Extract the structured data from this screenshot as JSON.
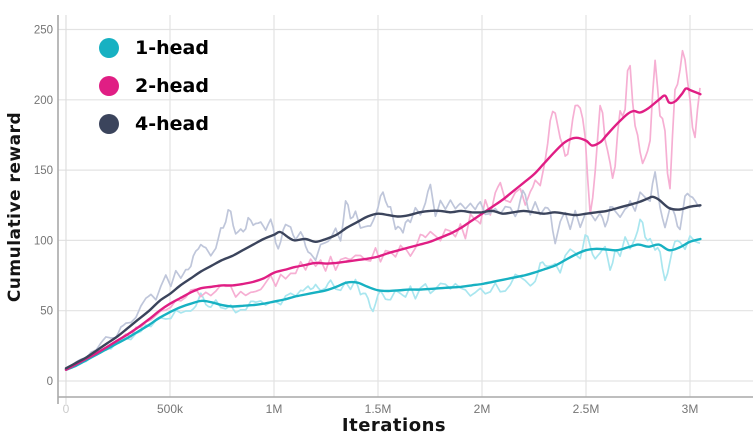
{
  "chart_data": {
    "type": "line",
    "title": "",
    "xlabel": "Iterations",
    "ylabel": "Cumulative reward",
    "grid": true,
    "legend_position": "top-left",
    "x_axis": {
      "unit": "iterations",
      "range_M": [
        0,
        3.3
      ],
      "ticks": [
        {
          "label": "0",
          "m": 0
        },
        {
          "label": "500k",
          "m": 0.5
        },
        {
          "label": "1M",
          "m": 1
        },
        {
          "label": "1.5M",
          "m": 1.5
        },
        {
          "label": "2M",
          "m": 2
        },
        {
          "label": "2.5M",
          "m": 2.5
        },
        {
          "label": "3M",
          "m": 3
        }
      ]
    },
    "y_axis": {
      "range": [
        -11,
        260
      ],
      "ticks": [
        {
          "label": "0",
          "v": 0
        },
        {
          "label": "50",
          "v": 50
        },
        {
          "label": "100",
          "v": 100
        },
        {
          "label": "150",
          "v": 150
        },
        {
          "label": "200",
          "v": 200
        },
        {
          "label": "250",
          "v": 250
        }
      ]
    },
    "series": [
      {
        "name": "1-head",
        "color": "#17b1c2",
        "raw_color": "#a9e6ef",
        "smoothed": [
          [
            0,
            8
          ],
          [
            0.05,
            11
          ],
          [
            0.1,
            15
          ],
          [
            0.15,
            19
          ],
          [
            0.2,
            23
          ],
          [
            0.25,
            27
          ],
          [
            0.3,
            31
          ],
          [
            0.35,
            35.5
          ],
          [
            0.4,
            40
          ],
          [
            0.45,
            45
          ],
          [
            0.5,
            49
          ],
          [
            0.55,
            52.5
          ],
          [
            0.6,
            55
          ],
          [
            0.65,
            57
          ],
          [
            0.7,
            56
          ],
          [
            0.75,
            54
          ],
          [
            0.8,
            53
          ],
          [
            0.85,
            53.5
          ],
          [
            0.9,
            54
          ],
          [
            0.95,
            55
          ],
          [
            1,
            56.5
          ],
          [
            1.05,
            58
          ],
          [
            1.1,
            60
          ],
          [
            1.15,
            61.5
          ],
          [
            1.2,
            63
          ],
          [
            1.25,
            64.5
          ],
          [
            1.3,
            67
          ],
          [
            1.35,
            70
          ],
          [
            1.4,
            70
          ],
          [
            1.45,
            67
          ],
          [
            1.5,
            64.5
          ],
          [
            1.55,
            64
          ],
          [
            1.6,
            64.5
          ],
          [
            1.65,
            65
          ],
          [
            1.7,
            65
          ],
          [
            1.75,
            65.5
          ],
          [
            1.8,
            66
          ],
          [
            1.85,
            66.5
          ],
          [
            1.9,
            67
          ],
          [
            1.95,
            68
          ],
          [
            2,
            69
          ],
          [
            2.05,
            70.5
          ],
          [
            2.1,
            72
          ],
          [
            2.15,
            73.5
          ],
          [
            2.2,
            75
          ],
          [
            2.25,
            77
          ],
          [
            2.3,
            79.5
          ],
          [
            2.35,
            82
          ],
          [
            2.4,
            86
          ],
          [
            2.45,
            90
          ],
          [
            2.5,
            93
          ],
          [
            2.55,
            94
          ],
          [
            2.6,
            93.5
          ],
          [
            2.65,
            93
          ],
          [
            2.7,
            95
          ],
          [
            2.75,
            97
          ],
          [
            2.8,
            95.5
          ],
          [
            2.85,
            97
          ],
          [
            2.9,
            93
          ],
          [
            2.95,
            95
          ],
          [
            3,
            99
          ],
          [
            3.05,
            101
          ]
        ],
        "noise": {
          "seed": 5,
          "amp": [
            [
              0,
              1.5
            ],
            [
              0.5,
              3.5
            ],
            [
              1,
              5
            ],
            [
              1.5,
              6.5
            ],
            [
              2,
              7
            ],
            [
              2.4,
              9
            ],
            [
              2.6,
              8
            ],
            [
              2.9,
              11
            ],
            [
              3.05,
              6
            ]
          ],
          "bias": [
            [
              0,
              0
            ],
            [
              0.8,
              -2
            ],
            [
              1.2,
              1
            ],
            [
              1.6,
              -2
            ],
            [
              2,
              -1
            ],
            [
              3.05,
              0
            ]
          ],
          "spikes": [
            [
              0.65,
              5
            ],
            [
              1.17,
              8
            ],
            [
              1.47,
              -16
            ],
            [
              2.3,
              8
            ],
            [
              2.5,
              14
            ],
            [
              2.62,
              -10
            ],
            [
              2.77,
              12
            ],
            [
              2.88,
              -28
            ],
            [
              2.95,
              8
            ]
          ]
        }
      },
      {
        "name": "2-head",
        "color": "#e01e84",
        "raw_color": "#f6afd3",
        "smoothed": [
          [
            0,
            8
          ],
          [
            0.05,
            12
          ],
          [
            0.1,
            16
          ],
          [
            0.15,
            20
          ],
          [
            0.2,
            24.5
          ],
          [
            0.25,
            29
          ],
          [
            0.3,
            33.5
          ],
          [
            0.35,
            38.5
          ],
          [
            0.4,
            44
          ],
          [
            0.45,
            50
          ],
          [
            0.5,
            55
          ],
          [
            0.55,
            59
          ],
          [
            0.6,
            63
          ],
          [
            0.65,
            66
          ],
          [
            0.7,
            67
          ],
          [
            0.75,
            68
          ],
          [
            0.8,
            68
          ],
          [
            0.85,
            69
          ],
          [
            0.9,
            70.5
          ],
          [
            0.95,
            73
          ],
          [
            1,
            77
          ],
          [
            1.05,
            79
          ],
          [
            1.1,
            81
          ],
          [
            1.15,
            82.5
          ],
          [
            1.2,
            84
          ],
          [
            1.25,
            83.5
          ],
          [
            1.3,
            84
          ],
          [
            1.35,
            85
          ],
          [
            1.4,
            86
          ],
          [
            1.45,
            87
          ],
          [
            1.5,
            88.5
          ],
          [
            1.55,
            91
          ],
          [
            1.6,
            93
          ],
          [
            1.65,
            95
          ],
          [
            1.7,
            97
          ],
          [
            1.75,
            99
          ],
          [
            1.8,
            102
          ],
          [
            1.85,
            105
          ],
          [
            1.9,
            109
          ],
          [
            1.95,
            114
          ],
          [
            2,
            119
          ],
          [
            2.05,
            124
          ],
          [
            2.1,
            129
          ],
          [
            2.15,
            135
          ],
          [
            2.2,
            141
          ],
          [
            2.25,
            147
          ],
          [
            2.3,
            155
          ],
          [
            2.35,
            163
          ],
          [
            2.4,
            170
          ],
          [
            2.45,
            173
          ],
          [
            2.5,
            171
          ],
          [
            2.53,
            167.5
          ],
          [
            2.57,
            170
          ],
          [
            2.6,
            175
          ],
          [
            2.65,
            183
          ],
          [
            2.7,
            190
          ],
          [
            2.73,
            192
          ],
          [
            2.76,
            191
          ],
          [
            2.8,
            194
          ],
          [
            2.85,
            200
          ],
          [
            2.88,
            203
          ],
          [
            2.9,
            198
          ],
          [
            2.93,
            199
          ],
          [
            2.96,
            204
          ],
          [
            2.98,
            208
          ],
          [
            3,
            207
          ],
          [
            3.05,
            204
          ]
        ],
        "noise": {
          "seed": 97,
          "amp": [
            [
              0,
              1.5
            ],
            [
              0.5,
              4
            ],
            [
              1,
              7
            ],
            [
              1.5,
              8
            ],
            [
              1.8,
              10
            ],
            [
              2,
              12
            ],
            [
              2.2,
              18
            ],
            [
              2.4,
              24
            ],
            [
              2.6,
              24
            ],
            [
              2.8,
              24
            ],
            [
              3,
              24
            ],
            [
              3.05,
              16
            ]
          ],
          "bias": [
            [
              0,
              0
            ],
            [
              0.7,
              -2
            ],
            [
              0.9,
              -3
            ],
            [
              1.1,
              -2
            ],
            [
              1.5,
              0
            ],
            [
              3.05,
              0
            ]
          ],
          "spikes": [
            [
              2.35,
              22
            ],
            [
              2.42,
              -25
            ],
            [
              2.52,
              -40
            ],
            [
              2.58,
              20
            ],
            [
              2.63,
              -28
            ],
            [
              2.7,
              30
            ],
            [
              2.78,
              -30
            ],
            [
              2.83,
              25
            ],
            [
              2.9,
              -45
            ],
            [
              2.97,
              40
            ],
            [
              3.02,
              -25
            ]
          ]
        }
      },
      {
        "name": "4-head",
        "color": "#3b445c",
        "raw_color": "#bfc6da",
        "smoothed": [
          [
            0,
            9
          ],
          [
            0.05,
            13
          ],
          [
            0.1,
            17
          ],
          [
            0.15,
            22
          ],
          [
            0.2,
            27
          ],
          [
            0.25,
            32
          ],
          [
            0.3,
            38
          ],
          [
            0.35,
            44
          ],
          [
            0.4,
            50
          ],
          [
            0.45,
            57
          ],
          [
            0.5,
            62
          ],
          [
            0.55,
            68
          ],
          [
            0.6,
            73
          ],
          [
            0.65,
            78
          ],
          [
            0.7,
            82
          ],
          [
            0.75,
            86
          ],
          [
            0.8,
            89
          ],
          [
            0.85,
            93
          ],
          [
            0.9,
            97
          ],
          [
            0.95,
            101
          ],
          [
            1,
            104
          ],
          [
            1.03,
            106
          ],
          [
            1.07,
            102
          ],
          [
            1.1,
            100
          ],
          [
            1.15,
            101
          ],
          [
            1.2,
            99
          ],
          [
            1.25,
            101
          ],
          [
            1.3,
            104
          ],
          [
            1.35,
            109
          ],
          [
            1.4,
            113
          ],
          [
            1.45,
            117
          ],
          [
            1.5,
            119
          ],
          [
            1.55,
            118
          ],
          [
            1.6,
            117
          ],
          [
            1.65,
            118
          ],
          [
            1.7,
            120
          ],
          [
            1.75,
            121
          ],
          [
            1.8,
            121
          ],
          [
            1.85,
            120
          ],
          [
            1.9,
            121
          ],
          [
            1.95,
            120
          ],
          [
            2,
            120
          ],
          [
            2.05,
            121
          ],
          [
            2.1,
            119
          ],
          [
            2.15,
            120
          ],
          [
            2.2,
            121
          ],
          [
            2.25,
            120
          ],
          [
            2.3,
            119
          ],
          [
            2.35,
            120
          ],
          [
            2.4,
            119
          ],
          [
            2.45,
            118
          ],
          [
            2.5,
            119
          ],
          [
            2.55,
            120
          ],
          [
            2.6,
            121
          ],
          [
            2.65,
            123
          ],
          [
            2.7,
            125
          ],
          [
            2.75,
            127
          ],
          [
            2.8,
            130
          ],
          [
            2.82,
            131
          ],
          [
            2.85,
            129
          ],
          [
            2.9,
            123
          ],
          [
            2.95,
            122
          ],
          [
            3,
            124
          ],
          [
            3.05,
            125
          ]
        ],
        "noise": {
          "seed": 42,
          "amp": [
            [
              0,
              2
            ],
            [
              0.3,
              6
            ],
            [
              0.5,
              9
            ],
            [
              0.7,
              11
            ],
            [
              0.9,
              12
            ],
            [
              1.1,
              11
            ],
            [
              1.5,
              10
            ],
            [
              2,
              10
            ],
            [
              2.5,
              10
            ],
            [
              2.8,
              13
            ],
            [
              3.05,
              11
            ]
          ],
          "bias": [
            [
              0,
              0
            ],
            [
              0.3,
              4
            ],
            [
              0.5,
              8
            ],
            [
              0.7,
              11
            ],
            [
              0.85,
              12
            ],
            [
              1,
              6
            ],
            [
              1.1,
              -2
            ],
            [
              1.3,
              0
            ],
            [
              3.05,
              0
            ]
          ],
          "spikes": [
            [
              0.62,
              10
            ],
            [
              0.78,
              14
            ],
            [
              0.88,
              16
            ],
            [
              1.02,
              -14
            ],
            [
              1.13,
              14
            ],
            [
              1.35,
              12
            ],
            [
              1.52,
              14
            ],
            [
              1.62,
              -12
            ],
            [
              1.75,
              12
            ],
            [
              2.2,
              16
            ],
            [
              2.35,
              -12
            ],
            [
              2.6,
              -10
            ],
            [
              2.83,
              12
            ],
            [
              2.95,
              -22
            ],
            [
              3.0,
              12
            ]
          ]
        }
      }
    ]
  },
  "colors": {
    "background": "#ffffff",
    "grid": "#e3e3e3",
    "axis": "#a9a9a9",
    "tick_label": "#757575",
    "x_zero_label": "#cbcbcb",
    "title_text": "#141414"
  }
}
